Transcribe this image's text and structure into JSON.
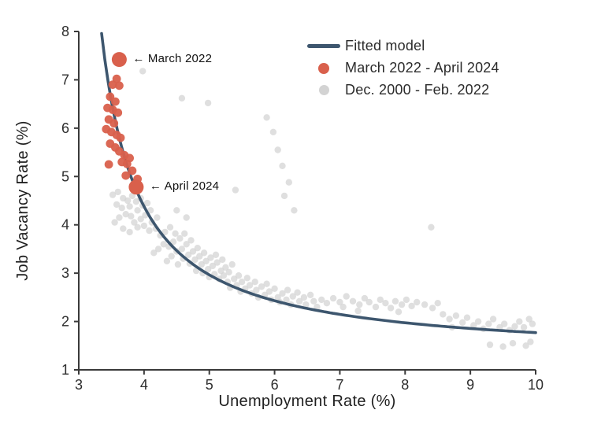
{
  "chart_data": {
    "type": "scatter",
    "title": "",
    "xlabel": "Unemployment Rate (%)",
    "ylabel": "Job Vacancy Rate (%)",
    "xlim": [
      3,
      10
    ],
    "ylim": [
      1,
      8
    ],
    "xticks": [
      3,
      4,
      5,
      6,
      7,
      8,
      9,
      10
    ],
    "yticks": [
      1,
      2,
      3,
      4,
      5,
      6,
      7,
      8
    ],
    "grid": false,
    "legend_position": "upper-right-inside",
    "axis_color": "#3a3a3a",
    "fitted_model": {
      "name": "Fitted model",
      "color": "#3d566e",
      "formula": "v = c + a/(u - b)",
      "params": {
        "a": 3.83,
        "b": 2.78,
        "c": 1.24
      },
      "u_range": [
        3.35,
        10
      ]
    },
    "series": [
      {
        "name": "March 2022 - April 2024",
        "color": "#d9604c",
        "points": [
          [
            3.58,
            7.02
          ],
          [
            3.52,
            6.9
          ],
          [
            3.62,
            6.88
          ],
          [
            3.48,
            6.65
          ],
          [
            3.56,
            6.55
          ],
          [
            3.44,
            6.42
          ],
          [
            3.52,
            6.38
          ],
          [
            3.6,
            6.32
          ],
          [
            3.46,
            6.18
          ],
          [
            3.54,
            6.1
          ],
          [
            3.42,
            5.98
          ],
          [
            3.5,
            5.92
          ],
          [
            3.58,
            5.86
          ],
          [
            3.64,
            5.8
          ],
          [
            3.48,
            5.68
          ],
          [
            3.56,
            5.6
          ],
          [
            3.62,
            5.52
          ],
          [
            3.7,
            5.44
          ],
          [
            3.78,
            5.38
          ],
          [
            3.66,
            5.3
          ],
          [
            3.74,
            5.26
          ],
          [
            3.46,
            5.25
          ],
          [
            3.82,
            5.12
          ],
          [
            3.72,
            5.02
          ],
          [
            3.9,
            4.95
          ]
        ],
        "highlights": [
          {
            "label": "March 2022",
            "u": 3.62,
            "v": 7.42
          },
          {
            "label": "April 2024",
            "u": 3.88,
            "v": 4.78
          }
        ]
      },
      {
        "name": "Dec. 2000 - Feb. 2022",
        "color": "#d3d3d3",
        "points": [
          [
            3.52,
            4.62
          ],
          [
            3.6,
            4.68
          ],
          [
            3.68,
            4.55
          ],
          [
            3.58,
            4.42
          ],
          [
            3.66,
            4.35
          ],
          [
            3.75,
            4.5
          ],
          [
            3.82,
            4.6
          ],
          [
            3.78,
            4.38
          ],
          [
            3.88,
            4.48
          ],
          [
            3.95,
            4.55
          ],
          [
            3.72,
            4.22
          ],
          [
            3.62,
            4.15
          ],
          [
            3.55,
            4.05
          ],
          [
            3.8,
            4.18
          ],
          [
            3.9,
            4.3
          ],
          [
            3.98,
            4.4
          ],
          [
            4.05,
            4.45
          ],
          [
            3.85,
            4.05
          ],
          [
            3.95,
            4.12
          ],
          [
            4.02,
            4.2
          ],
          [
            4.1,
            4.3
          ],
          [
            3.68,
            3.92
          ],
          [
            3.78,
            3.85
          ],
          [
            3.9,
            3.95
          ],
          [
            4.0,
            3.98
          ],
          [
            4.12,
            4.05
          ],
          [
            4.2,
            4.15
          ],
          [
            4.08,
            3.88
          ],
          [
            4.18,
            3.92
          ],
          [
            4.5,
            4.3
          ],
          [
            4.65,
            4.15
          ],
          [
            4.25,
            3.78
          ],
          [
            4.32,
            3.85
          ],
          [
            4.4,
            3.95
          ],
          [
            4.48,
            3.82
          ],
          [
            4.3,
            3.6
          ],
          [
            4.22,
            3.5
          ],
          [
            4.15,
            3.42
          ],
          [
            4.38,
            3.55
          ],
          [
            4.45,
            3.65
          ],
          [
            4.55,
            3.72
          ],
          [
            4.62,
            3.82
          ],
          [
            4.5,
            3.45
          ],
          [
            4.42,
            3.35
          ],
          [
            4.35,
            3.25
          ],
          [
            4.58,
            3.5
          ],
          [
            4.65,
            3.6
          ],
          [
            4.72,
            3.68
          ],
          [
            4.6,
            3.3
          ],
          [
            4.52,
            3.18
          ],
          [
            4.68,
            3.38
          ],
          [
            4.75,
            3.45
          ],
          [
            4.82,
            3.52
          ],
          [
            4.7,
            3.2
          ],
          [
            4.78,
            3.28
          ],
          [
            4.85,
            3.35
          ],
          [
            4.92,
            3.42
          ],
          [
            4.88,
            3.18
          ],
          [
            4.95,
            3.25
          ],
          [
            5.02,
            3.32
          ],
          [
            5.1,
            3.38
          ],
          [
            4.8,
            3.05
          ],
          [
            4.9,
            3.0
          ],
          [
            4.98,
            3.08
          ],
          [
            5.05,
            3.15
          ],
          [
            5.12,
            3.22
          ],
          [
            5.2,
            3.28
          ],
          [
            5.0,
            2.92
          ],
          [
            5.08,
            2.98
          ],
          [
            5.18,
            3.05
          ],
          [
            5.25,
            3.12
          ],
          [
            5.15,
            2.88
          ],
          [
            5.22,
            2.95
          ],
          [
            5.3,
            3.02
          ],
          [
            5.35,
            3.18
          ],
          [
            5.28,
            2.82
          ],
          [
            5.38,
            2.88
          ],
          [
            5.45,
            2.95
          ],
          [
            5.32,
            2.7
          ],
          [
            5.42,
            2.75
          ],
          [
            5.5,
            2.82
          ],
          [
            5.58,
            2.9
          ],
          [
            5.48,
            2.62
          ],
          [
            5.55,
            2.68
          ],
          [
            5.62,
            2.75
          ],
          [
            5.7,
            2.82
          ],
          [
            5.65,
            2.58
          ],
          [
            5.72,
            2.65
          ],
          [
            5.8,
            2.72
          ],
          [
            5.88,
            2.78
          ],
          [
            5.75,
            2.5
          ],
          [
            5.85,
            2.55
          ],
          [
            5.92,
            2.62
          ],
          [
            6.0,
            2.68
          ],
          [
            5.95,
            2.45
          ],
          [
            6.05,
            2.5
          ],
          [
            6.12,
            2.58
          ],
          [
            6.2,
            2.65
          ],
          [
            6.08,
            2.4
          ],
          [
            6.18,
            2.45
          ],
          [
            6.28,
            2.52
          ],
          [
            6.35,
            2.6
          ],
          [
            6.25,
            2.35
          ],
          [
            6.38,
            2.42
          ],
          [
            6.45,
            2.5
          ],
          [
            6.55,
            2.55
          ],
          [
            6.48,
            2.35
          ],
          [
            6.6,
            2.42
          ],
          [
            6.65,
            2.3
          ],
          [
            6.72,
            2.45
          ],
          [
            6.8,
            2.38
          ],
          [
            6.9,
            2.48
          ],
          [
            7.0,
            2.4
          ],
          [
            7.1,
            2.52
          ],
          [
            7.05,
            2.3
          ],
          [
            7.2,
            2.42
          ],
          [
            7.3,
            2.35
          ],
          [
            7.38,
            2.48
          ],
          [
            7.45,
            2.4
          ],
          [
            7.28,
            2.22
          ],
          [
            7.55,
            2.3
          ],
          [
            7.62,
            2.45
          ],
          [
            7.7,
            2.38
          ],
          [
            7.78,
            2.28
          ],
          [
            7.85,
            2.42
          ],
          [
            7.95,
            2.35
          ],
          [
            8.02,
            2.45
          ],
          [
            8.1,
            2.32
          ],
          [
            8.18,
            2.4
          ],
          [
            7.9,
            2.2
          ],
          [
            8.3,
            2.35
          ],
          [
            8.42,
            2.28
          ],
          [
            8.5,
            2.38
          ],
          [
            8.58,
            2.15
          ],
          [
            8.68,
            2.05
          ],
          [
            8.78,
            2.12
          ],
          [
            8.88,
            1.98
          ],
          [
            8.95,
            2.08
          ],
          [
            9.05,
            1.92
          ],
          [
            9.12,
            2.0
          ],
          [
            9.2,
            1.85
          ],
          [
            9.28,
            1.95
          ],
          [
            9.35,
            2.05
          ],
          [
            9.45,
            1.88
          ],
          [
            9.52,
            1.95
          ],
          [
            9.6,
            1.82
          ],
          [
            9.68,
            1.9
          ],
          [
            9.75,
            2.0
          ],
          [
            9.82,
            1.88
          ],
          [
            9.9,
            2.05
          ],
          [
            9.95,
            1.95
          ],
          [
            9.3,
            1.52
          ],
          [
            9.5,
            1.48
          ],
          [
            9.65,
            1.55
          ],
          [
            9.85,
            1.5
          ],
          [
            9.92,
            1.58
          ],
          [
            8.72,
            1.88
          ],
          [
            3.98,
            7.18
          ],
          [
            4.58,
            6.62
          ],
          [
            4.98,
            6.52
          ],
          [
            5.88,
            6.22
          ],
          [
            5.98,
            5.92
          ],
          [
            6.05,
            5.55
          ],
          [
            6.12,
            5.22
          ],
          [
            6.22,
            4.88
          ],
          [
            6.15,
            4.6
          ],
          [
            6.3,
            4.3
          ],
          [
            8.4,
            3.95
          ],
          [
            5.4,
            4.72
          ]
        ]
      }
    ],
    "annotations": [
      {
        "text": "←  March 2022",
        "x": 3.62,
        "y": 7.42,
        "dx": 17
      },
      {
        "text": "←  April 2024",
        "x": 3.88,
        "y": 4.78,
        "dx": 17
      }
    ]
  }
}
